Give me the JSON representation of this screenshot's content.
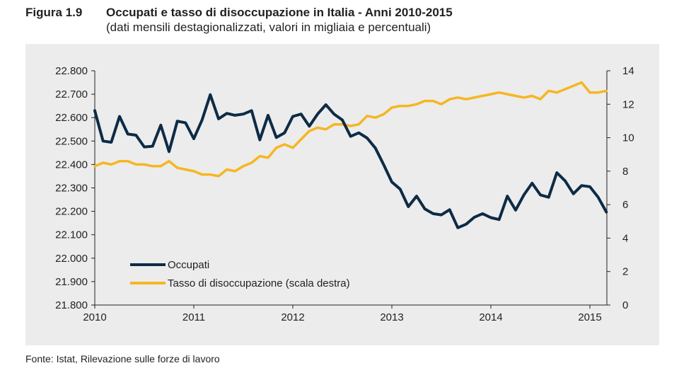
{
  "figure": {
    "number": "Figura 1.9",
    "title": "Occupati e tasso di disoccupazione in Italia - Anni 2010-2015",
    "subtitle": "(dati mensili destagionalizzati, valori in migliaia e percentuali)"
  },
  "source": "Fonte: Istat, Rilevazione sulle forze di lavoro",
  "chart_data": {
    "type": "line",
    "title": "Occupati e tasso di disoccupazione in Italia - Anni 2010-2015",
    "xlabel": "",
    "ylabel_left": "",
    "ylabel_right": "",
    "x_tick_labels": [
      "2010",
      "2011",
      "2012",
      "2013",
      "2014",
      "2015"
    ],
    "y_left_range": [
      21800,
      22800
    ],
    "y_left_ticks": [
      "21.800",
      "21.900",
      "22.000",
      "22.100",
      "22.200",
      "22.300",
      "22.400",
      "22.500",
      "22.600",
      "22.700",
      "22.800"
    ],
    "y_right_range": [
      0,
      14
    ],
    "y_right_ticks": [
      "0",
      "2",
      "4",
      "6",
      "8",
      "10",
      "12",
      "14"
    ],
    "grid": false,
    "legend_position": "bottom-left",
    "colors": {
      "occupati": "#0d2b45",
      "disoccupazione": "#f6b623"
    },
    "series": [
      {
        "name": "Occupati",
        "axis": "left",
        "x": [
          "2010-01",
          "2010-02",
          "2010-03",
          "2010-04",
          "2010-05",
          "2010-06",
          "2010-07",
          "2010-08",
          "2010-09",
          "2010-10",
          "2010-11",
          "2010-12",
          "2011-01",
          "2011-02",
          "2011-03",
          "2011-04",
          "2011-05",
          "2011-06",
          "2011-07",
          "2011-08",
          "2011-09",
          "2011-10",
          "2011-11",
          "2011-12",
          "2012-01",
          "2012-02",
          "2012-03",
          "2012-04",
          "2012-05",
          "2012-06",
          "2012-07",
          "2012-08",
          "2012-09",
          "2012-10",
          "2012-11",
          "2012-12",
          "2013-01",
          "2013-02",
          "2013-03",
          "2013-04",
          "2013-05",
          "2013-06",
          "2013-07",
          "2013-08",
          "2013-09",
          "2013-10",
          "2013-11",
          "2013-12",
          "2014-01",
          "2014-02",
          "2014-03",
          "2014-04",
          "2014-05",
          "2014-06",
          "2014-07",
          "2014-08",
          "2014-09",
          "2014-10",
          "2014-11",
          "2014-12",
          "2015-01",
          "2015-02",
          "2015-03"
        ],
        "values": [
          22630,
          22500,
          22495,
          22605,
          22530,
          22525,
          22475,
          22478,
          22568,
          22455,
          22585,
          22578,
          22510,
          22590,
          22698,
          22595,
          22618,
          22610,
          22615,
          22630,
          22505,
          22610,
          22515,
          22535,
          22605,
          22615,
          22563,
          22615,
          22655,
          22615,
          22590,
          22520,
          22535,
          22513,
          22470,
          22400,
          22325,
          22295,
          22220,
          22265,
          22210,
          22190,
          22185,
          22207,
          22130,
          22145,
          22175,
          22190,
          22173,
          22165,
          22265,
          22205,
          22270,
          22320,
          22270,
          22260,
          22365,
          22330,
          22275,
          22310,
          22305,
          22260,
          22197
        ]
      },
      {
        "name": "Tasso di disoccupazione (scala destra)",
        "axis": "right",
        "x": [
          "2010-01",
          "2010-02",
          "2010-03",
          "2010-04",
          "2010-05",
          "2010-06",
          "2010-07",
          "2010-08",
          "2010-09",
          "2010-10",
          "2010-11",
          "2010-12",
          "2011-01",
          "2011-02",
          "2011-03",
          "2011-04",
          "2011-05",
          "2011-06",
          "2011-07",
          "2011-08",
          "2011-09",
          "2011-10",
          "2011-11",
          "2011-12",
          "2012-01",
          "2012-02",
          "2012-03",
          "2012-04",
          "2012-05",
          "2012-06",
          "2012-07",
          "2012-08",
          "2012-09",
          "2012-10",
          "2012-11",
          "2012-12",
          "2013-01",
          "2013-02",
          "2013-03",
          "2013-04",
          "2013-05",
          "2013-06",
          "2013-07",
          "2013-08",
          "2013-09",
          "2013-10",
          "2013-11",
          "2013-12",
          "2014-01",
          "2014-02",
          "2014-03",
          "2014-04",
          "2014-05",
          "2014-06",
          "2014-07",
          "2014-08",
          "2014-09",
          "2014-10",
          "2014-11",
          "2014-12",
          "2015-01",
          "2015-02",
          "2015-03"
        ],
        "values": [
          8.3,
          8.5,
          8.4,
          8.6,
          8.6,
          8.4,
          8.4,
          8.3,
          8.3,
          8.6,
          8.2,
          8.1,
          8.0,
          7.8,
          7.8,
          7.7,
          8.1,
          8.0,
          8.3,
          8.5,
          8.9,
          8.8,
          9.4,
          9.6,
          9.4,
          9.9,
          10.4,
          10.6,
          10.5,
          10.8,
          10.8,
          10.7,
          10.8,
          11.3,
          11.2,
          11.4,
          11.8,
          11.9,
          11.9,
          12.0,
          12.2,
          12.2,
          12.0,
          12.3,
          12.4,
          12.3,
          12.4,
          12.5,
          12.6,
          12.7,
          12.6,
          12.5,
          12.4,
          12.5,
          12.3,
          12.8,
          12.7,
          12.9,
          13.1,
          13.3,
          12.7,
          12.7,
          12.8
        ]
      }
    ]
  }
}
